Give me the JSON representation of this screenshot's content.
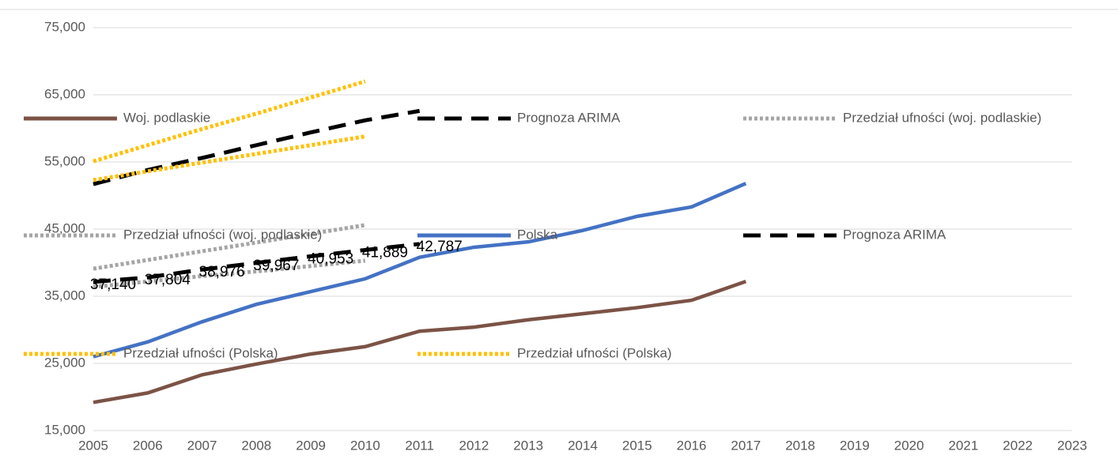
{
  "chart_data": {
    "type": "line",
    "x": [
      2005,
      2006,
      2007,
      2008,
      2009,
      2010,
      2011,
      2012,
      2013,
      2014,
      2015,
      2016,
      2017
    ],
    "xlim": [
      2005,
      2023
    ],
    "xticks": [
      2005,
      2006,
      2007,
      2008,
      2009,
      2010,
      2011,
      2012,
      2013,
      2014,
      2015,
      2016,
      2017,
      2018,
      2019,
      2020,
      2021,
      2022,
      2023
    ],
    "ylim": [
      15000,
      75000
    ],
    "yticks": [
      {
        "value": 15000,
        "label": "15,000"
      },
      {
        "value": 25000,
        "label": "25,000"
      },
      {
        "value": 35000,
        "label": "35,000"
      },
      {
        "value": 45000,
        "label": "45,000"
      },
      {
        "value": 55000,
        "label": "55,000"
      },
      {
        "value": 65000,
        "label": "65,000"
      },
      {
        "value": 75000,
        "label": "75,000"
      }
    ],
    "grid": true,
    "series": [
      {
        "name": "Woj. podlaskie",
        "color": "#7b5346",
        "style": "solid",
        "values": [
          19200,
          20600,
          23300,
          24900,
          26400,
          27500,
          29800,
          30400,
          31500,
          32400,
          33300,
          34400,
          37200
        ]
      },
      {
        "name": "Prognoza ARIMA",
        "color": "#000000",
        "style": "dashed",
        "values": [
          51700,
          53800,
          55600,
          57500,
          59400,
          61200,
          62600,
          null,
          null,
          null,
          null,
          null,
          null
        ]
      },
      {
        "name": "Przedział ufności (woj. podlaskie)",
        "color": "#a5a5a5",
        "style": "dotted",
        "values": [
          39100,
          40400,
          41700,
          43000,
          44300,
          45600,
          null,
          null,
          null,
          null,
          null,
          null,
          null
        ]
      },
      {
        "name": "Przedział ufności (woj. podlaskie)",
        "color": "#a5a5a5",
        "style": "dotted",
        "values": [
          36400,
          37200,
          38000,
          38700,
          39500,
          40300,
          null,
          null,
          null,
          null,
          null,
          null,
          null
        ]
      },
      {
        "name": "Polska",
        "color": "#4472c4",
        "style": "solid",
        "values": [
          26000,
          28200,
          31200,
          33800,
          35700,
          37600,
          40800,
          42300,
          43100,
          44800,
          46900,
          48300,
          51800
        ]
      },
      {
        "name": "Prognoza ARIMA",
        "color": "#000000",
        "style": "dashed",
        "values": [
          37140,
          37804,
          38976,
          39967,
          40953,
          41889,
          42787,
          null,
          null,
          null,
          null,
          null,
          null
        ],
        "value_labels": [
          "37,140",
          "37,804",
          "38,976",
          "39,967",
          "40,953",
          "41,889",
          "42,787",
          null,
          null,
          null,
          null,
          null,
          null
        ]
      },
      {
        "name": "Przedział ufności (Polska)",
        "color": "#ffc000",
        "style": "dotted",
        "values": [
          55100,
          57500,
          59900,
          62200,
          64600,
          67000,
          null,
          null,
          null,
          null,
          null,
          null,
          null
        ]
      },
      {
        "name": "Przedział ufności (Polska)",
        "color": "#ffc000",
        "style": "dotted",
        "values": [
          52300,
          53600,
          54900,
          56200,
          57500,
          58800,
          null,
          null,
          null,
          null,
          null,
          null,
          null
        ]
      }
    ]
  }
}
